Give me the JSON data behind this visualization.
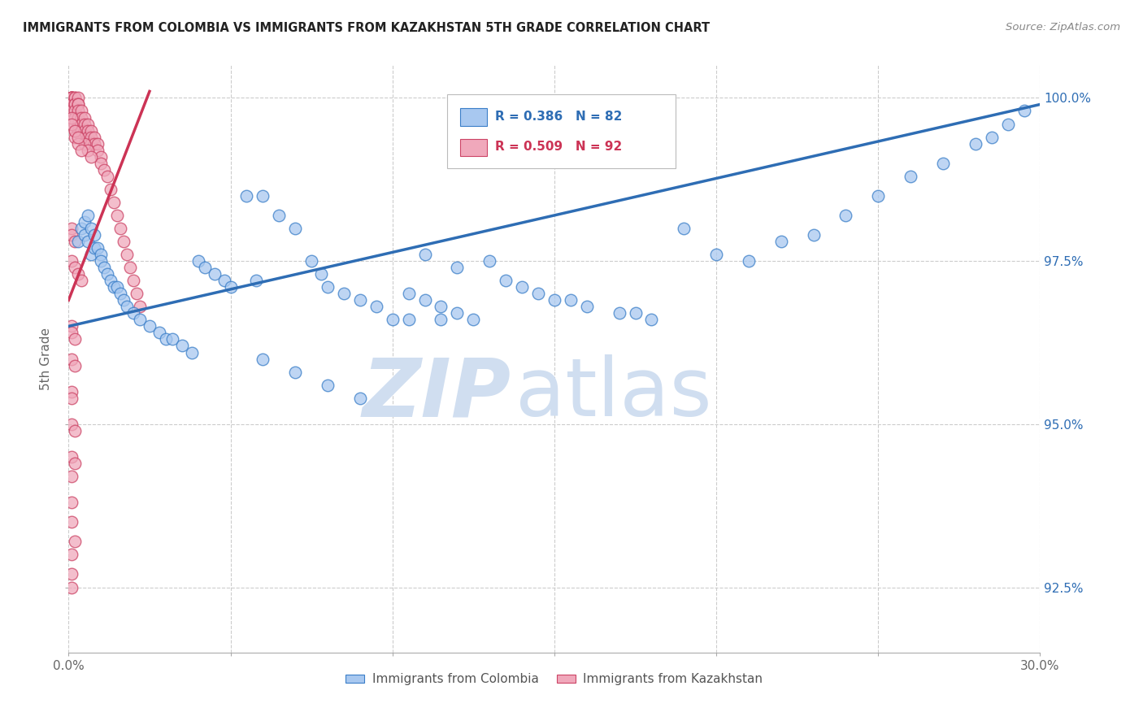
{
  "title": "IMMIGRANTS FROM COLOMBIA VS IMMIGRANTS FROM KAZAKHSTAN 5TH GRADE CORRELATION CHART",
  "source": "Source: ZipAtlas.com",
  "ylabel": "5th Grade",
  "xlim": [
    0.0,
    0.3
  ],
  "ylim": [
    0.915,
    1.005
  ],
  "xtick_positions": [
    0.0,
    0.05,
    0.1,
    0.15,
    0.2,
    0.25,
    0.3
  ],
  "xtick_labels": [
    "0.0%",
    "",
    "",
    "",
    "",
    "",
    "30.0%"
  ],
  "ytick_positions": [
    0.925,
    0.95,
    0.975,
    1.0
  ],
  "ytick_labels": [
    "92.5%",
    "95.0%",
    "97.5%",
    "100.0%"
  ],
  "color_colombia_fill": "#A8C8F0",
  "color_colombia_edge": "#3A7EC8",
  "color_kazakhstan_fill": "#F0A8BB",
  "color_kazakhstan_edge": "#CC4466",
  "color_colombia_line": "#2E6DB4",
  "color_kazakhstan_line": "#CC3355",
  "watermark_zip": "ZIP",
  "watermark_atlas": "atlas",
  "watermark_color": "#D0DEF0",
  "legend_r1": "R = 0.386",
  "legend_n1": "N = 82",
  "legend_r2": "R = 0.509",
  "legend_n2": "N = 92",
  "col_line_x": [
    0.0,
    0.3
  ],
  "col_line_y": [
    0.965,
    0.999
  ],
  "kaz_line_x": [
    0.0,
    0.025
  ],
  "kaz_line_y": [
    0.969,
    1.001
  ],
  "colombia_x": [
    0.003,
    0.004,
    0.005,
    0.005,
    0.006,
    0.006,
    0.007,
    0.007,
    0.008,
    0.008,
    0.009,
    0.01,
    0.01,
    0.011,
    0.012,
    0.013,
    0.014,
    0.015,
    0.016,
    0.017,
    0.018,
    0.02,
    0.022,
    0.025,
    0.028,
    0.03,
    0.032,
    0.035,
    0.038,
    0.04,
    0.042,
    0.045,
    0.048,
    0.05,
    0.055,
    0.058,
    0.06,
    0.065,
    0.07,
    0.075,
    0.078,
    0.08,
    0.085,
    0.09,
    0.095,
    0.1,
    0.105,
    0.11,
    0.115,
    0.12,
    0.125,
    0.13,
    0.135,
    0.14,
    0.145,
    0.15,
    0.155,
    0.16,
    0.17,
    0.175,
    0.18,
    0.19,
    0.2,
    0.21,
    0.22,
    0.23,
    0.24,
    0.25,
    0.26,
    0.27,
    0.105,
    0.11,
    0.115,
    0.12,
    0.28,
    0.285,
    0.29,
    0.295,
    0.06,
    0.07,
    0.08,
    0.09
  ],
  "colombia_y": [
    0.978,
    0.98,
    0.981,
    0.979,
    0.982,
    0.978,
    0.98,
    0.976,
    0.979,
    0.977,
    0.977,
    0.976,
    0.975,
    0.974,
    0.973,
    0.972,
    0.971,
    0.971,
    0.97,
    0.969,
    0.968,
    0.967,
    0.966,
    0.965,
    0.964,
    0.963,
    0.963,
    0.962,
    0.961,
    0.975,
    0.974,
    0.973,
    0.972,
    0.971,
    0.985,
    0.972,
    0.985,
    0.982,
    0.98,
    0.975,
    0.973,
    0.971,
    0.97,
    0.969,
    0.968,
    0.966,
    0.966,
    0.976,
    0.966,
    0.974,
    0.966,
    0.975,
    0.972,
    0.971,
    0.97,
    0.969,
    0.969,
    0.968,
    0.967,
    0.967,
    0.966,
    0.98,
    0.976,
    0.975,
    0.978,
    0.979,
    0.982,
    0.985,
    0.988,
    0.99,
    0.97,
    0.969,
    0.968,
    0.967,
    0.993,
    0.994,
    0.996,
    0.998,
    0.96,
    0.958,
    0.956,
    0.954
  ],
  "kazakhstan_x": [
    0.001,
    0.001,
    0.001,
    0.001,
    0.001,
    0.001,
    0.001,
    0.001,
    0.001,
    0.002,
    0.002,
    0.002,
    0.002,
    0.002,
    0.002,
    0.002,
    0.002,
    0.003,
    0.003,
    0.003,
    0.003,
    0.003,
    0.003,
    0.003,
    0.004,
    0.004,
    0.004,
    0.004,
    0.004,
    0.005,
    0.005,
    0.005,
    0.005,
    0.006,
    0.006,
    0.006,
    0.007,
    0.007,
    0.007,
    0.008,
    0.008,
    0.009,
    0.009,
    0.01,
    0.01,
    0.011,
    0.012,
    0.013,
    0.014,
    0.015,
    0.016,
    0.017,
    0.018,
    0.019,
    0.02,
    0.021,
    0.022,
    0.005,
    0.006,
    0.007,
    0.002,
    0.003,
    0.004,
    0.001,
    0.001,
    0.002,
    0.003,
    0.001,
    0.001,
    0.002,
    0.001,
    0.002,
    0.003,
    0.004,
    0.001,
    0.001,
    0.002,
    0.001,
    0.002,
    0.001,
    0.001,
    0.001,
    0.002,
    0.001,
    0.002,
    0.001,
    0.001,
    0.001,
    0.002,
    0.001,
    0.001,
    0.001
  ],
  "kazakhstan_y": [
    1.0,
    1.0,
    1.0,
    1.0,
    1.0,
    1.0,
    0.999,
    0.999,
    0.998,
    1.0,
    1.0,
    0.999,
    0.999,
    0.998,
    0.997,
    0.996,
    0.995,
    1.0,
    0.999,
    0.999,
    0.998,
    0.997,
    0.996,
    0.995,
    0.998,
    0.997,
    0.996,
    0.995,
    0.994,
    0.997,
    0.996,
    0.995,
    0.994,
    0.996,
    0.995,
    0.994,
    0.995,
    0.994,
    0.993,
    0.994,
    0.993,
    0.993,
    0.992,
    0.991,
    0.99,
    0.989,
    0.988,
    0.986,
    0.984,
    0.982,
    0.98,
    0.978,
    0.976,
    0.974,
    0.972,
    0.97,
    0.968,
    0.993,
    0.992,
    0.991,
    0.994,
    0.993,
    0.992,
    0.997,
    0.996,
    0.995,
    0.994,
    0.98,
    0.979,
    0.978,
    0.975,
    0.974,
    0.973,
    0.972,
    0.965,
    0.964,
    0.963,
    0.96,
    0.959,
    0.955,
    0.954,
    0.95,
    0.949,
    0.945,
    0.944,
    0.942,
    0.938,
    0.935,
    0.932,
    0.93,
    0.927,
    0.925
  ]
}
